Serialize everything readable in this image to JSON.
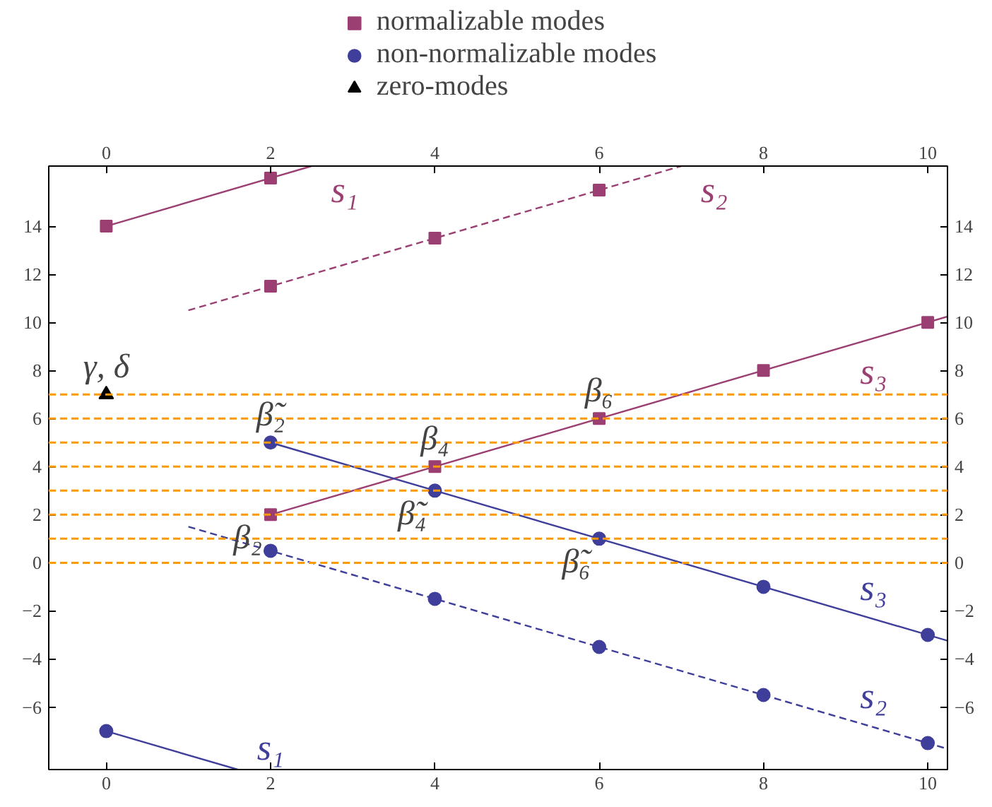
{
  "chart_data": {
    "type": "scatter",
    "xlim": [
      -0.7,
      10.24
    ],
    "ylim": [
      -8.6,
      16.5
    ],
    "y2lim": [
      -8.6,
      16.5
    ],
    "x2lim": [
      -0.7,
      10.24
    ],
    "xticks": [
      0,
      2,
      4,
      6,
      8,
      10
    ],
    "x2ticks": [
      0,
      2,
      4,
      6,
      8,
      10
    ],
    "yticks": [
      {
        "value": -6,
        "label": "−6"
      },
      {
        "value": -4,
        "label": "−4"
      },
      {
        "value": -2,
        "label": "−2"
      },
      0,
      2,
      4,
      6,
      8,
      10,
      12,
      14
    ],
    "y2ticks": [
      {
        "value": -6,
        "label": "−6"
      },
      {
        "value": -4,
        "label": "−4"
      },
      {
        "value": -2,
        "label": "−2"
      },
      0,
      2,
      4,
      6,
      8,
      10,
      12,
      14
    ],
    "grid": false,
    "legend": "top",
    "series": [
      {
        "name": "normalizable modes",
        "marker": "square",
        "color": "#9b3f73",
        "x": [
          0,
          2,
          2,
          4,
          6,
          2,
          4,
          6,
          8,
          10
        ],
        "values": [
          14,
          16,
          11.5,
          13.5,
          15.5,
          2,
          4,
          6,
          8,
          10
        ]
      },
      {
        "name": "non-normalizable modes",
        "marker": "circle",
        "color": "#3f3f9b",
        "x": [
          0,
          2,
          4,
          6,
          8,
          10,
          2,
          4,
          6,
          8,
          10
        ],
        "values": [
          -7,
          0.5,
          -1.5,
          -3.5,
          -5.5,
          -7.5,
          5,
          3,
          1,
          -1,
          -3
        ]
      },
      {
        "name": "zero-modes",
        "marker": "triangle",
        "color": "#000000",
        "x": [
          0
        ],
        "values": [
          7
        ]
      },
      {
        "name": "s₁",
        "type": "line",
        "line_style": "solid",
        "color": "#9b3f73",
        "x": [
          0,
          2.5
        ],
        "values": [
          14,
          16.5
        ]
      },
      {
        "name": "s₂",
        "type": "line",
        "line_style": "dashed",
        "color": "#9b3f73",
        "x": [
          1,
          7
        ],
        "values": [
          10.5,
          16.5
        ]
      },
      {
        "name": "s₃",
        "type": "line",
        "line_style": "solid",
        "color": "#9b3f73",
        "x": [
          2,
          10.24
        ],
        "values": [
          2,
          10.24
        ]
      },
      {
        "name": "s₁",
        "type": "line",
        "line_style": "solid",
        "color": "#3f3f9b",
        "x": [
          0,
          1.6
        ],
        "values": [
          -7,
          -8.6
        ]
      },
      {
        "name": "s₂",
        "type": "line",
        "line_style": "dashed",
        "color": "#3f3f9b",
        "x": [
          1,
          10.24
        ],
        "values": [
          1.5,
          -7.74
        ]
      },
      {
        "name": "s₃",
        "type": "line",
        "line_style": "solid",
        "color": "#3f3f9b",
        "x": [
          2,
          10.24
        ],
        "values": [
          5,
          -3.24
        ]
      }
    ],
    "ref_lines": [
      {
        "axis": "y",
        "value": 0,
        "color": "#ff9900",
        "line_style": "dashed"
      },
      {
        "axis": "y",
        "value": 1,
        "color": "#ff9900",
        "line_style": "dashed"
      },
      {
        "axis": "y",
        "value": 2,
        "color": "#ff9900",
        "line_style": "dashed"
      },
      {
        "axis": "y",
        "value": 3,
        "color": "#ff9900",
        "line_style": "dashed"
      },
      {
        "axis": "y",
        "value": 4,
        "color": "#ff9900",
        "line_style": "dashed"
      },
      {
        "axis": "y",
        "value": 5,
        "color": "#ff9900",
        "line_style": "dashed"
      },
      {
        "axis": "y",
        "value": 6,
        "color": "#ff9900",
        "line_style": "dashed"
      },
      {
        "axis": "y",
        "value": 7,
        "color": "#ff9900",
        "line_style": "dashed"
      }
    ],
    "annotations": [
      {
        "text": "γ, δ",
        "x": 0,
        "y": 7
      },
      {
        "text": "β̃₂",
        "x": 2,
        "y": 5
      },
      {
        "text": "β₂",
        "x": 2,
        "y": 2
      },
      {
        "text": "β₄",
        "x": 4,
        "y": 4
      },
      {
        "text": "β̃₄",
        "x": 4,
        "y": 3
      },
      {
        "text": "β₆",
        "x": 6,
        "y": 6
      },
      {
        "text": "β̃₆",
        "x": 6,
        "y": 1
      }
    ]
  }
}
